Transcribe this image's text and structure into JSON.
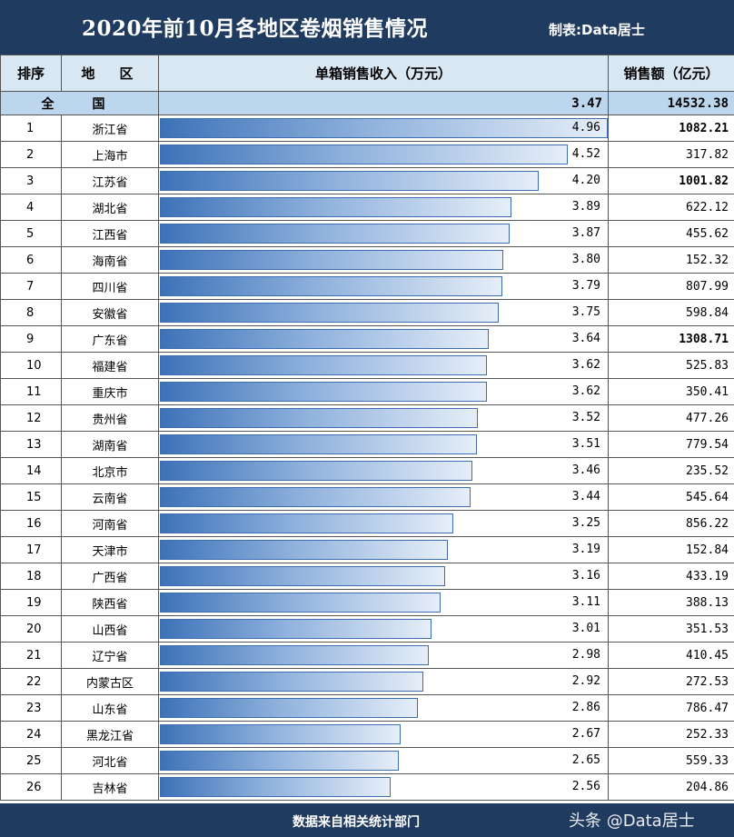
{
  "header": {
    "title": "2020年前10月各地区卷烟销售情况",
    "maker": "制表:Data居士"
  },
  "table": {
    "columns": [
      "排序",
      "地　区",
      "单箱销售收入（万元）",
      "销售额（亿元）"
    ],
    "national": {
      "label": "全　国",
      "income": "3.47",
      "sales": "14532.38"
    }
  },
  "chart_data": {
    "type": "bar",
    "orientation": "horizontal",
    "title": "",
    "xlabel": "单箱销售收入（万元）",
    "xlim": [
      0,
      4.96
    ],
    "categories": [
      "浙江省",
      "上海市",
      "江苏省",
      "湖北省",
      "江西省",
      "海南省",
      "四川省",
      "安徽省",
      "广东省",
      "福建省",
      "重庆市",
      "贵州省",
      "湖南省",
      "北京市",
      "云南省",
      "河南省",
      "天津市",
      "广西省",
      "陕西省",
      "山西省",
      "辽宁省",
      "内蒙古区",
      "山东省",
      "黑龙江省",
      "河北省",
      "吉林省"
    ],
    "ranks": [
      "1",
      "2",
      "3",
      "4",
      "5",
      "6",
      "7",
      "8",
      "9",
      "10",
      "11",
      "12",
      "13",
      "14",
      "15",
      "16",
      "17",
      "18",
      "19",
      "20",
      "21",
      "22",
      "23",
      "24",
      "25",
      "26"
    ],
    "values": [
      4.96,
      4.52,
      4.2,
      3.89,
      3.87,
      3.8,
      3.79,
      3.75,
      3.64,
      3.62,
      3.62,
      3.52,
      3.51,
      3.46,
      3.44,
      3.25,
      3.19,
      3.16,
      3.11,
      3.01,
      2.98,
      2.92,
      2.86,
      2.67,
      2.65,
      2.56
    ],
    "value_labels": [
      "4.96",
      "4.52",
      "4.20",
      "3.89",
      "3.87",
      "3.80",
      "3.79",
      "3.75",
      "3.64",
      "3.62",
      "3.62",
      "3.52",
      "3.51",
      "3.46",
      "3.44",
      "3.25",
      "3.19",
      "3.16",
      "3.11",
      "3.01",
      "2.98",
      "2.92",
      "2.86",
      "2.67",
      "2.65",
      "2.56"
    ],
    "sales": [
      "1082.21",
      "317.82",
      "1001.82",
      "622.12",
      "455.62",
      "152.32",
      "807.99",
      "598.84",
      "1308.71",
      "525.83",
      "350.41",
      "477.26",
      "779.54",
      "235.52",
      "545.64",
      "856.22",
      "152.84",
      "433.19",
      "388.13",
      "351.53",
      "410.45",
      "272.53",
      "786.47",
      "252.33",
      "559.33",
      "204.86"
    ],
    "sales_bold": [
      true,
      false,
      true,
      false,
      false,
      false,
      false,
      false,
      true,
      false,
      false,
      false,
      false,
      false,
      false,
      false,
      false,
      false,
      false,
      false,
      false,
      false,
      false,
      false,
      false,
      false
    ],
    "bar_color": "#3d72b8"
  },
  "footer": {
    "source": "数据来自相关统计部门",
    "watermark": "头条 @Data居士"
  }
}
